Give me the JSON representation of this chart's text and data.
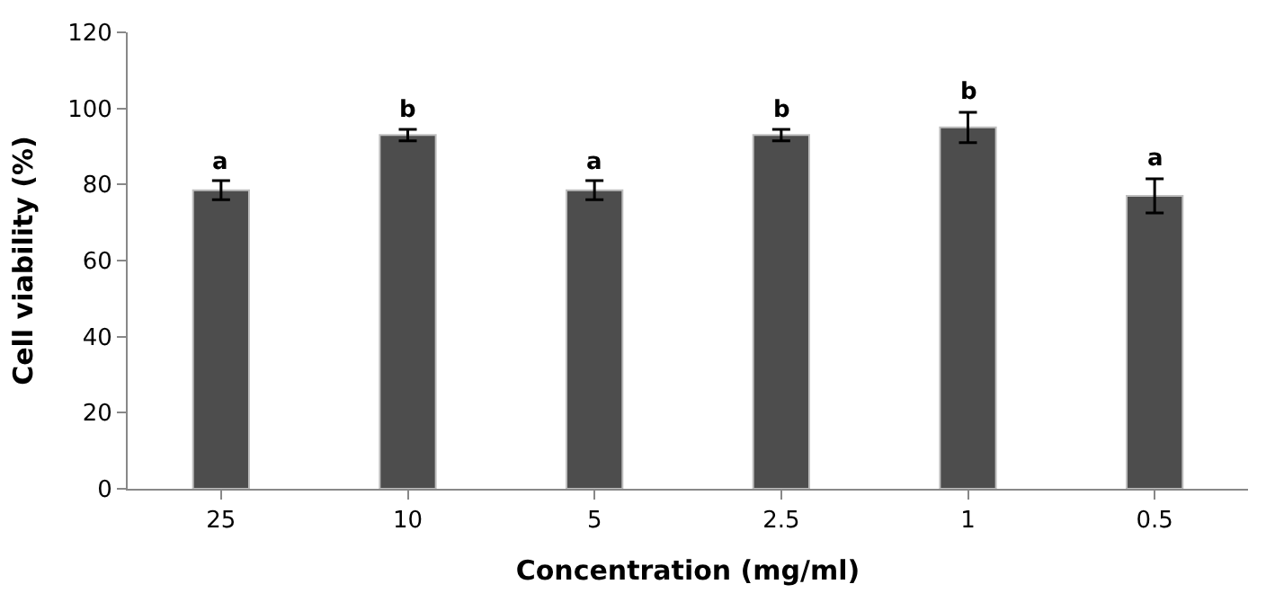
{
  "chart_data": {
    "type": "bar",
    "xlabel": "Concentration (mg/ml)",
    "ylabel": "Cell viability (%)",
    "categories": [
      "25",
      "10",
      "5",
      "2.5",
      "1",
      "0.5"
    ],
    "values": [
      78.5,
      93,
      78.5,
      93,
      95,
      77
    ],
    "errors": [
      2.5,
      1.5,
      2.5,
      1.5,
      4,
      4.5
    ],
    "value_labels": [
      "a",
      "b",
      "a",
      "b",
      "b",
      "a"
    ],
    "color": "#4d4d4d",
    "ylim": [
      0,
      120
    ],
    "yticks": [
      0,
      20,
      40,
      60,
      80,
      100,
      120
    ]
  }
}
